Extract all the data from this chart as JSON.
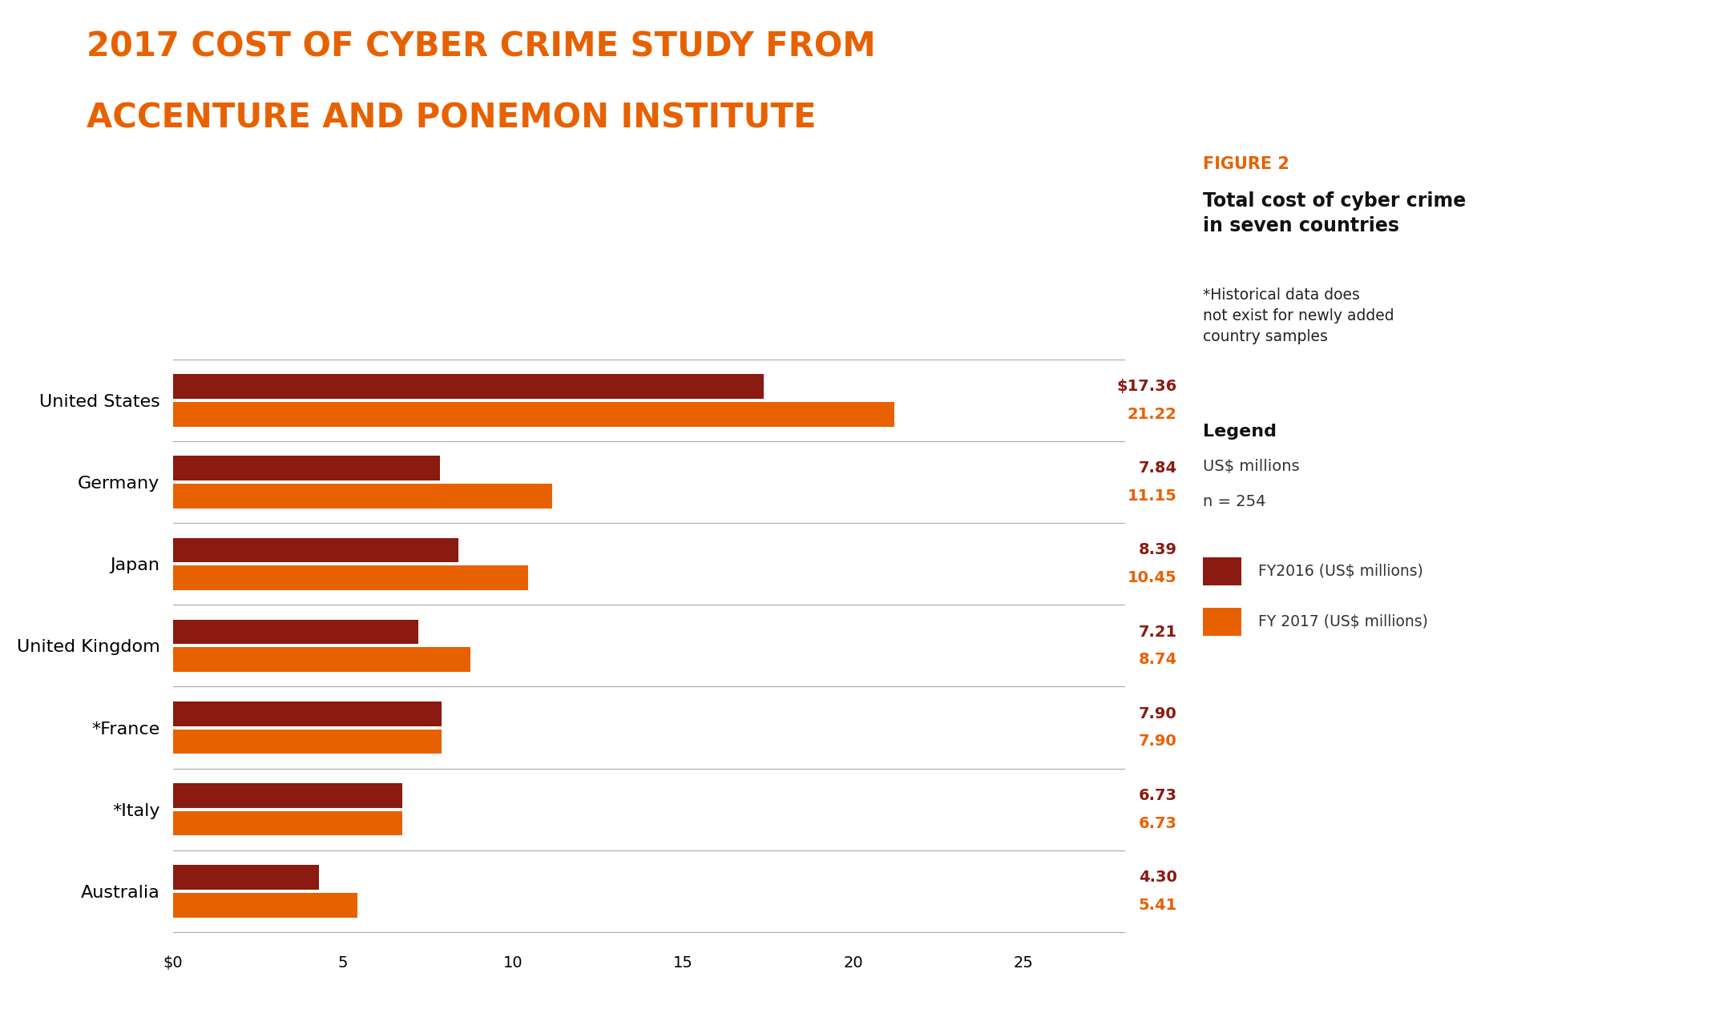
{
  "title_line1": "2017 COST OF CYBER CRIME STUDY FROM",
  "title_line2": "ACCENTURE AND PONEMON INSTITUTE",
  "title_color": "#E86100",
  "title_fontsize": 30,
  "background_color": "#FFFFFF",
  "categories": [
    "United States",
    "Germany",
    "Japan",
    "United Kingdom",
    "*France",
    "*Italy",
    "Australia"
  ],
  "fy2016_values": [
    17.36,
    7.84,
    8.39,
    7.21,
    7.9,
    6.73,
    4.3
  ],
  "fy2017_values": [
    21.22,
    11.15,
    10.45,
    8.74,
    7.9,
    6.73,
    5.41
  ],
  "fy2016_labels": [
    "$17.36",
    "7.84",
    "8.39",
    "7.21",
    "7.90",
    "6.73",
    "4.30"
  ],
  "fy2017_labels": [
    "21.22",
    "11.15",
    "10.45",
    "8.74",
    "7.90",
    "6.73",
    "5.41"
  ],
  "fy2016_color": "#8B1A10",
  "fy2017_color": "#E86100",
  "bar_height": 0.3,
  "xlim": [
    0,
    28
  ],
  "xticks": [
    0,
    5,
    10,
    15,
    20,
    25
  ],
  "xticklabels": [
    "$0",
    "5",
    "10",
    "15",
    "20",
    "25"
  ],
  "figure2_label": "FIGURE 2",
  "figure2_color": "#E86100",
  "subtitle": "Total cost of cyber crime\nin seven countries",
  "note": "*Historical data does\nnot exist for newly added\ncountry samples",
  "legend_title": "Legend",
  "legend_line1": "US$ millions",
  "legend_line2": "n = 254",
  "legend_fy2016": "FY2016 (US$ millions)",
  "legend_fy2017": "FY 2017 (US$ millions)",
  "label_fontsize": 14,
  "category_fontsize": 16,
  "tick_fontsize": 14,
  "value_label_color_2016": "#8B1A10",
  "value_label_color_2017": "#E86100",
  "grid_color": "#CCCCCC",
  "separator_color": "#AAAAAA"
}
